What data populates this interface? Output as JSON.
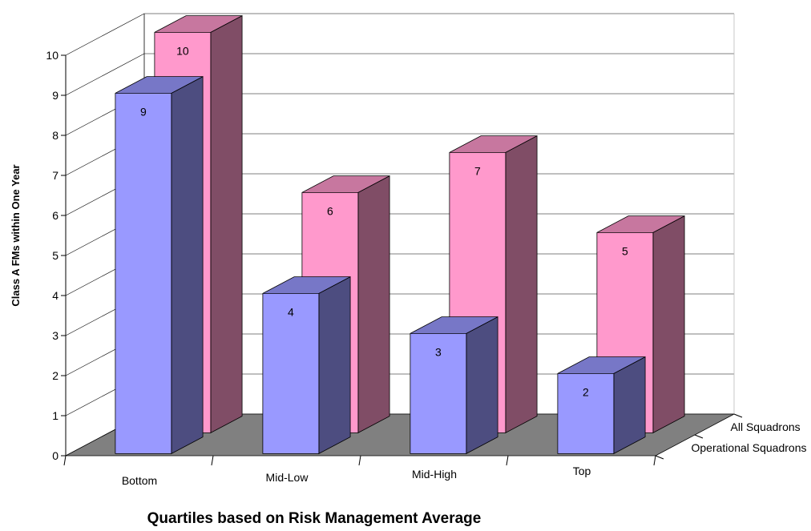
{
  "chart_data": {
    "type": "bar",
    "title": "",
    "xlabel": "Quartiles based on Risk Management Average",
    "ylabel": "Class A FMs within One Year",
    "categories": [
      "Bottom",
      "Mid-Low",
      "Mid-High",
      "Top"
    ],
    "ylim": [
      0,
      10
    ],
    "yticks": [
      "0",
      "1",
      "2",
      "3",
      "4",
      "5",
      "6",
      "7",
      "8",
      "9",
      "10"
    ],
    "series": [
      {
        "name": "Operational Squadrons",
        "values": [
          9,
          4,
          3,
          2
        ],
        "color": "#9999ff"
      },
      {
        "name": "All Squadrons",
        "values": [
          10,
          6,
          7,
          5
        ],
        "color": "#ff99cc"
      }
    ],
    "depth_labels": [
      "All Squadrons",
      "Operational Squadrons"
    ],
    "grid": true,
    "style": "3d-column",
    "floor_color": "#808080"
  }
}
